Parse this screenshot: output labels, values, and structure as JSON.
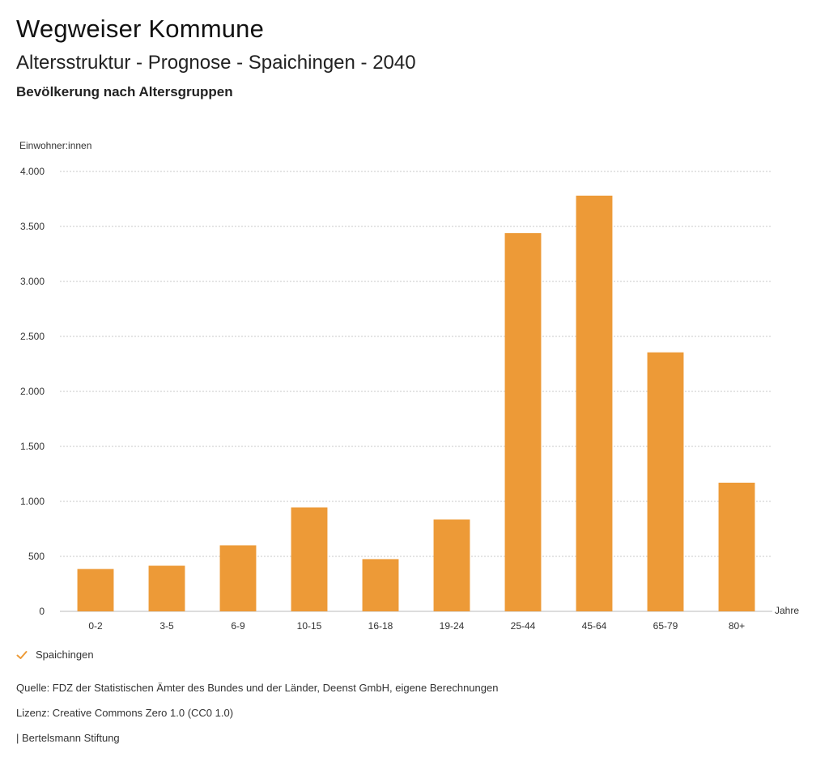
{
  "header": {
    "title": "Wegweiser Kommune",
    "subtitle": "Altersstruktur - Prognose - Spaichingen - 2040",
    "subsubtitle": "Bevölkerung nach Altersgruppen"
  },
  "chart_data": {
    "type": "bar",
    "ylabel": "Einwohner:innen",
    "xlabel": "Jahre",
    "categories": [
      "0-2",
      "3-5",
      "6-9",
      "10-15",
      "16-18",
      "19-24",
      "25-44",
      "45-64",
      "65-79",
      "80+"
    ],
    "series": [
      {
        "name": "Spaichingen",
        "values": [
          385,
          415,
          600,
          945,
          475,
          835,
          3440,
          3780,
          2355,
          1170
        ]
      }
    ],
    "ylim": [
      0,
      4000
    ],
    "yticks": [
      0,
      500,
      1000,
      1500,
      2000,
      2500,
      3000,
      3500,
      4000
    ],
    "ytick_labels": [
      "0",
      "500",
      "1.000",
      "1.500",
      "2.000",
      "2.500",
      "3.000",
      "3.500",
      "4.000"
    ],
    "grid": true,
    "bar_color": "#ED9A37",
    "legend_position": "bottom-left"
  },
  "legend": {
    "label": "Spaichingen",
    "icon": "check-icon"
  },
  "footer": {
    "source": "Quelle: FDZ der Statistischen Ämter des Bundes und der Länder, Deenst GmbH, eigene Berechnungen",
    "license": "Lizenz: Creative Commons Zero 1.0 (CC0 1.0)",
    "publisher": "| Bertelsmann Stiftung"
  }
}
